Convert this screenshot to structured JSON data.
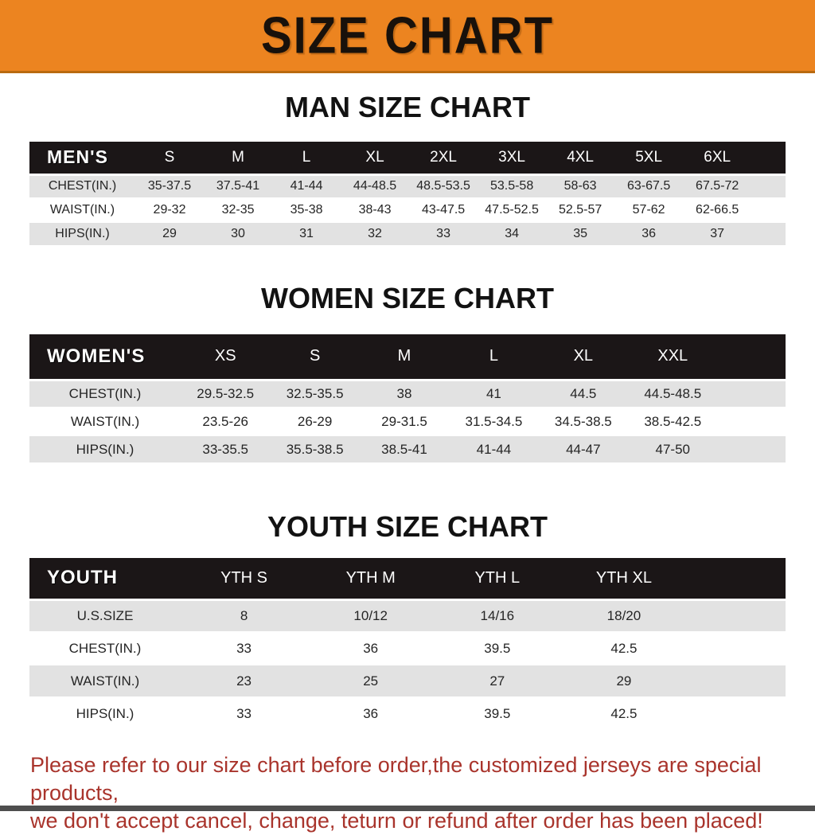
{
  "banner": {
    "title": "SIZE CHART"
  },
  "sections": [
    {
      "title": "MAN SIZE CHART",
      "header_label": "MEN'S",
      "sizes": [
        "S",
        "M",
        "L",
        "XL",
        "2XL",
        "3XL",
        "4XL",
        "5XL",
        "6XL"
      ],
      "rows": [
        {
          "label": "CHEST(IN.)",
          "values": [
            "35-37.5",
            "37.5-41",
            "41-44",
            "44-48.5",
            "48.5-53.5",
            "53.5-58",
            "58-63",
            "63-67.5",
            "67.5-72"
          ]
        },
        {
          "label": "WAIST(IN.)",
          "values": [
            "29-32",
            "32-35",
            "35-38",
            "38-43",
            "43-47.5",
            "47.5-52.5",
            "52.5-57",
            "57-62",
            "62-66.5"
          ]
        },
        {
          "label": "HIPS(IN.)",
          "values": [
            "29",
            "30",
            "31",
            "32",
            "33",
            "34",
            "35",
            "36",
            "37"
          ]
        }
      ]
    },
    {
      "title": "WOMEN SIZE CHART",
      "header_label": "WOMEN'S",
      "sizes": [
        "XS",
        "S",
        "M",
        "L",
        "XL",
        "XXL"
      ],
      "rows": [
        {
          "label": "CHEST(IN.)",
          "values": [
            "29.5-32.5",
            "32.5-35.5",
            "38",
            "41",
            "44.5",
            "44.5-48.5"
          ]
        },
        {
          "label": "WAIST(IN.)",
          "values": [
            "23.5-26",
            "26-29",
            "29-31.5",
            "31.5-34.5",
            "34.5-38.5",
            "38.5-42.5"
          ]
        },
        {
          "label": "HIPS(IN.)",
          "values": [
            "33-35.5",
            "35.5-38.5",
            "38.5-41",
            "41-44",
            "44-47",
            "47-50"
          ]
        }
      ]
    },
    {
      "title": "YOUTH SIZE CHART",
      "header_label": "YOUTH",
      "sizes": [
        "YTH S",
        "YTH M",
        "YTH L",
        "YTH XL"
      ],
      "rows": [
        {
          "label": "U.S.SIZE",
          "values": [
            "8",
            "10/12",
            "14/16",
            "18/20"
          ]
        },
        {
          "label": "CHEST(IN.)",
          "values": [
            "33",
            "36",
            "39.5",
            "42.5"
          ]
        },
        {
          "label": "WAIST(IN.)",
          "values": [
            "23",
            "25",
            "27",
            "29"
          ]
        },
        {
          "label": "HIPS(IN.)",
          "values": [
            "33",
            "36",
            "39.5",
            "42.5"
          ]
        }
      ]
    }
  ],
  "footer": {
    "line1": "Please refer to our size chart before order,the customized jerseys are special products,",
    "line2": "we don't accept cancel, change, teturn or refund after order has been placed!"
  },
  "colors": {
    "banner_bg": "#ec8420",
    "banner_border": "#b96a10",
    "header_bar_bg": "#1b1617",
    "row_gray": "#e2e2e2",
    "row_white": "#ffffff",
    "footer_text": "#a9342c",
    "bottom_bar": "#4e4e4e"
  }
}
